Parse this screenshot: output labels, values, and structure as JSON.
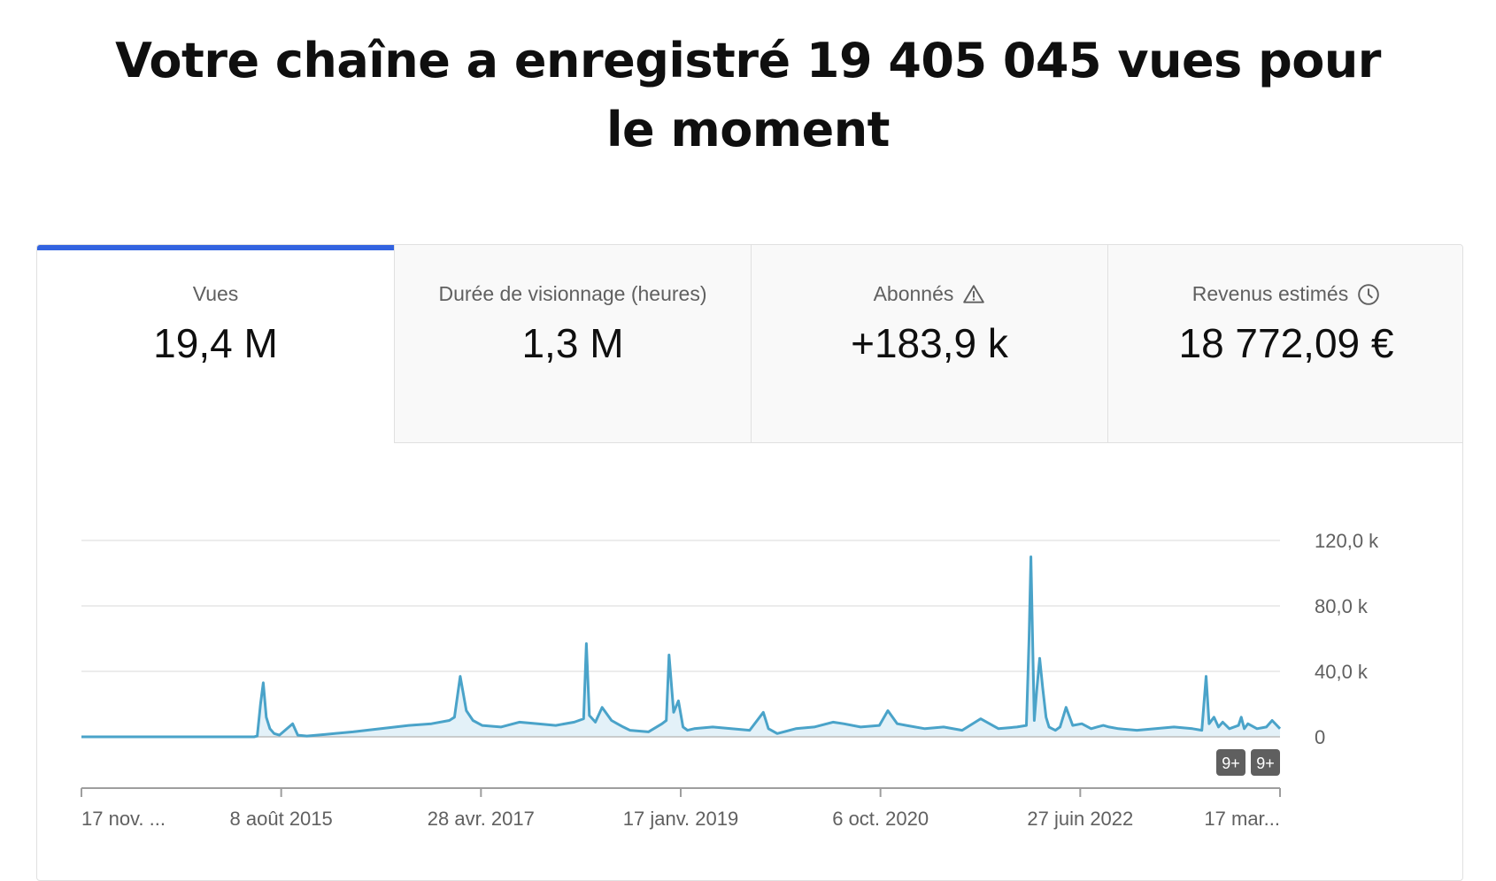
{
  "headline": "Votre chaîne a enregistré 19 405 045 vues pour le moment",
  "tabs": [
    {
      "label": "Vues",
      "value": "19,4 M",
      "icon": ""
    },
    {
      "label": "Durée de visionnage (heures)",
      "value": "1,3 M",
      "icon": ""
    },
    {
      "label": "Abonnés",
      "value": "+183,9 k",
      "icon": "warning-icon"
    },
    {
      "label": "Revenus estimés",
      "value": "18 772,09 €",
      "icon": "clock-icon"
    }
  ],
  "colors": {
    "accent": "#3263e0",
    "line": "#4aa3c9",
    "fill": "#e3f1f8",
    "grid": "#e5e5e5",
    "axis": "#9e9e9e",
    "badge": "#5f5f5f"
  },
  "badges": [
    "9+",
    "9+"
  ],
  "chart_data": {
    "type": "line",
    "title": "",
    "xlabel": "",
    "ylabel": "",
    "x_tick_labels": [
      "17 nov. ...",
      "8 août 2015",
      "28 avr. 2017",
      "17 janv. 2019",
      "6 oct. 2020",
      "27 juin 2022",
      "17 mar..."
    ],
    "y_tick_labels": [
      "0",
      "40,0 k",
      "80,0 k",
      "120,0 k"
    ],
    "ylim": [
      0,
      120000
    ],
    "grid": true,
    "series": [
      {
        "name": "",
        "x": [
          "2013-11-17",
          "2014-04-01",
          "2014-09-01",
          "2015-02-01",
          "2015-06-10",
          "2015-06-20",
          "2015-07-01",
          "2015-07-10",
          "2015-07-20",
          "2015-08-01",
          "2015-08-15",
          "2015-09-01",
          "2015-10-15",
          "2015-11-01",
          "2015-12-01",
          "2016-02-01",
          "2016-05-01",
          "2016-08-01",
          "2016-11-01",
          "2017-01-15",
          "2017-03-15",
          "2017-04-01",
          "2017-04-20",
          "2017-05-10",
          "2017-06-01",
          "2017-07-01",
          "2017-09-01",
          "2017-11-01",
          "2018-01-01",
          "2018-03-01",
          "2018-05-01",
          "2018-06-01",
          "2018-06-10",
          "2018-06-20",
          "2018-07-10",
          "2018-08-01",
          "2018-09-01",
          "2018-09-20",
          "2018-10-10",
          "2018-11-01",
          "2019-01-01",
          "2019-02-15",
          "2019-03-01",
          "2019-03-10",
          "2019-03-25",
          "2019-04-10",
          "2019-04-25",
          "2019-05-10",
          "2019-06-01",
          "2019-08-01",
          "2019-10-01",
          "2019-12-01",
          "2020-01-15",
          "2020-02-01",
          "2020-03-01",
          "2020-05-01",
          "2020-07-01",
          "2020-09-01",
          "2020-10-06",
          "2020-12-01",
          "2021-02-01",
          "2021-03-01",
          "2021-04-01",
          "2021-05-01",
          "2021-07-01",
          "2021-09-01",
          "2021-11-01",
          "2022-01-01",
          "2022-03-01",
          "2022-05-01",
          "2022-06-01",
          "2022-06-10",
          "2022-06-16",
          "2022-06-21",
          "2022-06-27",
          "2022-07-05",
          "2022-07-15",
          "2022-07-25",
          "2022-08-05",
          "2022-08-15",
          "2022-08-25",
          "2022-09-05",
          "2022-09-20",
          "2022-10-10",
          "2022-11-01",
          "2022-12-01",
          "2023-01-01",
          "2023-01-20",
          "2023-02-10",
          "2023-03-01",
          "2023-04-01",
          "2023-06-01",
          "2023-08-01",
          "2023-10-01",
          "2023-12-01",
          "2024-01-01",
          "2024-01-15",
          "2024-01-25",
          "2024-02-10",
          "2024-02-25",
          "2024-03-10",
          "2024-04-01",
          "2024-05-01",
          "2024-05-10",
          "2024-05-20",
          "2024-06-01",
          "2024-07-01",
          "2024-08-01",
          "2024-08-20",
          "2024-09-15"
        ],
        "y": [
          0,
          0,
          0,
          0,
          0,
          500,
          20000,
          33000,
          12000,
          5000,
          2000,
          1000,
          8000,
          1000,
          500,
          1500,
          3000,
          5000,
          7000,
          8000,
          10000,
          12000,
          37000,
          16000,
          10000,
          7000,
          6000,
          9000,
          8000,
          7000,
          9000,
          11000,
          57000,
          13000,
          9000,
          18000,
          10000,
          8000,
          6000,
          4000,
          3000,
          8000,
          10000,
          50000,
          15000,
          22000,
          6000,
          4000,
          5000,
          6000,
          5000,
          4000,
          15000,
          5000,
          2000,
          5000,
          6000,
          9000,
          8000,
          6000,
          7000,
          16000,
          8000,
          7000,
          5000,
          6000,
          4000,
          11000,
          5000,
          6000,
          7000,
          60000,
          110000,
          65000,
          10000,
          28000,
          48000,
          30000,
          12000,
          6000,
          5000,
          4000,
          6000,
          18000,
          7000,
          8000,
          5000,
          6000,
          7000,
          6000,
          5000,
          4000,
          5000,
          6000,
          5000,
          4000,
          37000,
          8000,
          12000,
          6000,
          9000,
          5000,
          7000,
          12000,
          5000,
          8000,
          5000,
          6000,
          10000,
          5000
        ]
      }
    ]
  }
}
